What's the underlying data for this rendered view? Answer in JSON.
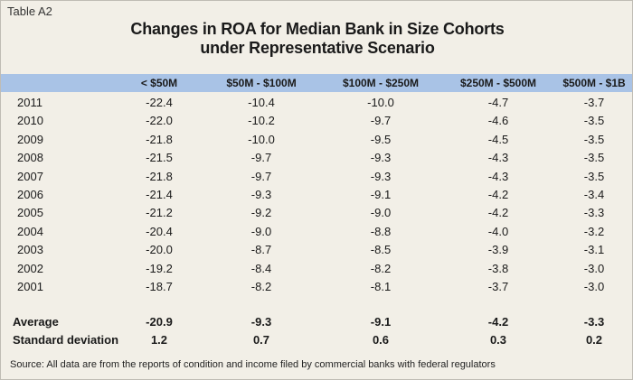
{
  "table_label": "Table A2",
  "title_line1": "Changes in ROA for Median Bank in Size Cohorts",
  "title_line2": "under Representative Scenario",
  "columns": [
    "< $50M",
    "$50M - $100M",
    "$100M - $250M",
    "$250M - $500M",
    "$500M - $1B"
  ],
  "rows": [
    {
      "year": "2011",
      "values": [
        "-22.4",
        "-10.4",
        "-10.0",
        "-4.7",
        "-3.7"
      ]
    },
    {
      "year": "2010",
      "values": [
        "-22.0",
        "-10.2",
        "-9.7",
        "-4.6",
        "-3.5"
      ]
    },
    {
      "year": "2009",
      "values": [
        "-21.8",
        "-10.0",
        "-9.5",
        "-4.5",
        "-3.5"
      ]
    },
    {
      "year": "2008",
      "values": [
        "-21.5",
        "-9.7",
        "-9.3",
        "-4.3",
        "-3.5"
      ]
    },
    {
      "year": "2007",
      "values": [
        "-21.8",
        "-9.7",
        "-9.3",
        "-4.3",
        "-3.5"
      ]
    },
    {
      "year": "2006",
      "values": [
        "-21.4",
        "-9.3",
        "-9.1",
        "-4.2",
        "-3.4"
      ]
    },
    {
      "year": "2005",
      "values": [
        "-21.2",
        "-9.2",
        "-9.0",
        "-4.2",
        "-3.3"
      ]
    },
    {
      "year": "2004",
      "values": [
        "-20.4",
        "-9.0",
        "-8.8",
        "-4.0",
        "-3.2"
      ]
    },
    {
      "year": "2003",
      "values": [
        "-20.0",
        "-8.7",
        "-8.5",
        "-3.9",
        "-3.1"
      ]
    },
    {
      "year": "2002",
      "values": [
        "-19.2",
        "-8.4",
        "-8.2",
        "-3.8",
        "-3.0"
      ]
    },
    {
      "year": "2001",
      "values": [
        "-18.7",
        "-8.2",
        "-8.1",
        "-3.7",
        "-3.0"
      ]
    }
  ],
  "summary": [
    {
      "label": "Average",
      "values": [
        "-20.9",
        "-9.3",
        "-9.1",
        "-4.2",
        "-3.3"
      ]
    },
    {
      "label": "Standard deviation",
      "values": [
        "1.2",
        "0.7",
        "0.6",
        "0.3",
        "0.2"
      ]
    }
  ],
  "source": "Source: All data are from the reports of condition and income filed by commercial banks with federal regulators",
  "colors": {
    "panel": "#f2efe7",
    "header_band": "#a9c3e6"
  }
}
